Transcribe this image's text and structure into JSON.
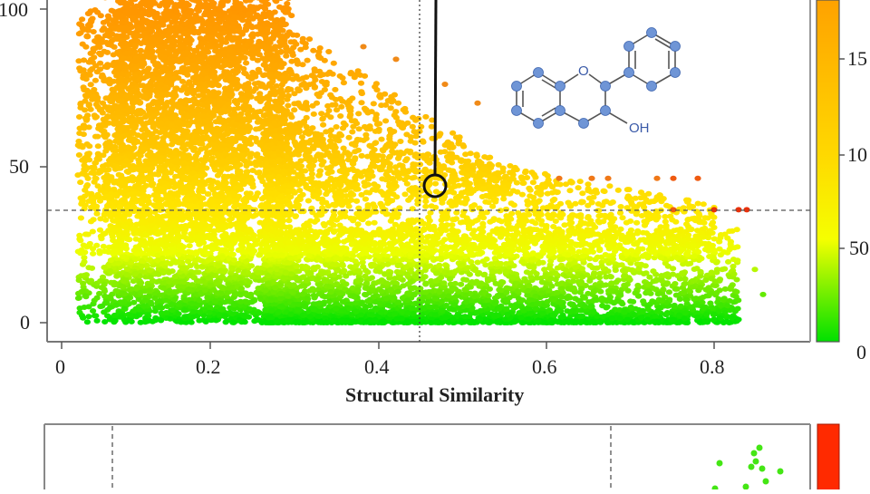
{
  "chart_data": [
    {
      "type": "scatter",
      "title": "",
      "xlabel": "Structural Similarity",
      "ylabel": "",
      "xlim": [
        -0.02,
        0.91
      ],
      "ylim": [
        -5,
        102
      ],
      "x_ticks": [
        "0",
        "0.2",
        "0.4",
        "0.6",
        "0.8"
      ],
      "x_tick_values": [
        0,
        0.2,
        0.4,
        0.6,
        0.8
      ],
      "y_ticks": [
        "0",
        "50",
        "100"
      ],
      "y_tick_values": [
        0,
        50,
        100
      ],
      "grid": false,
      "reference_lines": {
        "vertical_dashed_x": 0.45,
        "horizontal_dashed_y": 36
      },
      "color_scale": {
        "colors": [
          "#00e000",
          "#ffff00",
          "#ffa500"
        ],
        "labels": [
          "0",
          "50",
          "10",
          "15"
        ],
        "label_note": "colorbar labels clipped at right edge (likely 0, 50, 100, 150)"
      },
      "annotation": {
        "type": "circle-marker-with-line",
        "x": 0.47,
        "y": 42,
        "description": "highlighted compound linked to flavan-3-ol structure"
      },
      "inset_structure": {
        "name": "flavan-3-ol skeleton",
        "labels": [
          "O",
          "OH"
        ]
      },
      "density_description": "Dense cloud for x 0.03–0.3 spanning y 0–100; sparser points extend to x≈0.85; color tracks y value (green low, yellow mid, orange high); a few red points at y≈36–46 near x≈0.75–0.85",
      "sample_points": [
        {
          "x": 0.15,
          "y": 100
        },
        {
          "x": 0.12,
          "y": 80
        },
        {
          "x": 0.2,
          "y": 60
        },
        {
          "x": 0.1,
          "y": 40
        },
        {
          "x": 0.18,
          "y": 20
        },
        {
          "x": 0.2,
          "y": 2
        },
        {
          "x": 0.37,
          "y": 88
        },
        {
          "x": 0.41,
          "y": 84
        },
        {
          "x": 0.47,
          "y": 76
        },
        {
          "x": 0.51,
          "y": 70
        },
        {
          "x": 0.48,
          "y": 56
        },
        {
          "x": 0.55,
          "y": 50
        },
        {
          "x": 0.61,
          "y": 46
        },
        {
          "x": 0.65,
          "y": 46
        },
        {
          "x": 0.67,
          "y": 46
        },
        {
          "x": 0.73,
          "y": 46
        },
        {
          "x": 0.75,
          "y": 46
        },
        {
          "x": 0.78,
          "y": 46
        },
        {
          "x": 0.75,
          "y": 36
        },
        {
          "x": 0.8,
          "y": 36
        },
        {
          "x": 0.83,
          "y": 36
        },
        {
          "x": 0.84,
          "y": 36
        },
        {
          "x": 0.81,
          "y": 17
        },
        {
          "x": 0.85,
          "y": 17
        },
        {
          "x": 0.86,
          "y": 9
        },
        {
          "x": 0.8,
          "y": 1
        },
        {
          "x": 0.83,
          "y": 1
        },
        {
          "x": 0.6,
          "y": 22
        },
        {
          "x": 0.7,
          "y": 28
        },
        {
          "x": 0.72,
          "y": 10
        }
      ]
    },
    {
      "type": "scatter",
      "title": "",
      "partial": true,
      "description": "Second panel, cropped at bottom; dashed vertical lines near left and right; few green points in upper right; red colorbar",
      "colorbar_color": "#ff2a00"
    }
  ],
  "labels": {
    "x_axis_title": "Structural Similarity",
    "x_ticks": [
      "0",
      "0.2",
      "0.4",
      "0.6",
      "0.8"
    ],
    "y_ticks": [
      "100",
      "50",
      "0"
    ],
    "colorbar_ticks": [
      "15",
      "10",
      "50",
      "0"
    ],
    "oh": "OH",
    "o": "O"
  }
}
